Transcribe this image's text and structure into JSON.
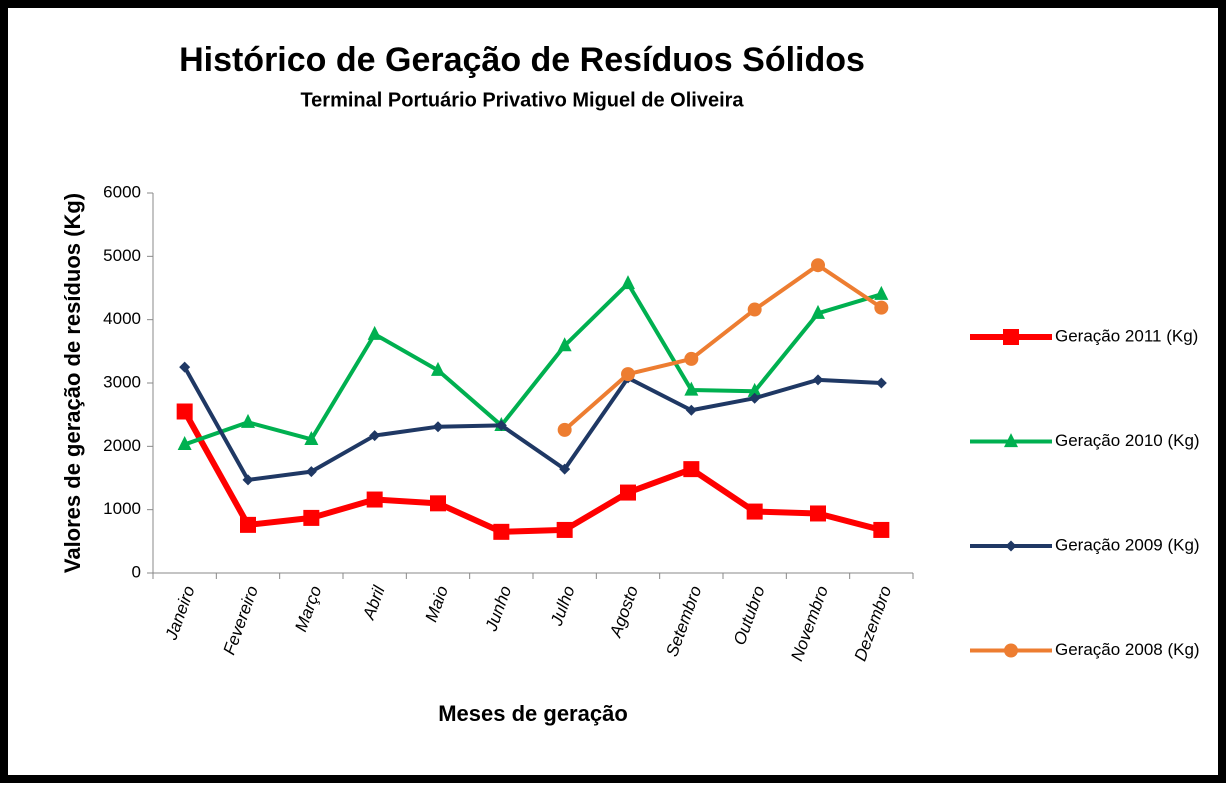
{
  "chart_data": {
    "type": "line",
    "title": "Histórico de Geração de Resíduos Sólidos",
    "subtitle": "Terminal Portuário Privativo Miguel de Oliveira",
    "x_label": "Meses de geração",
    "y_label": "Valores de geração de resíduos (Kg)",
    "categories": [
      "Janeiro",
      "Fevereiro",
      "Março",
      "Abril",
      "Maio",
      "Junho",
      "Julho",
      "Agosto",
      "Setembro",
      "Outubro",
      "Novembro",
      "Dezembro"
    ],
    "series": [
      {
        "name": "Geração 2011 (Kg)",
        "color": "#ff0000",
        "marker": "square",
        "values": [
          2550,
          760,
          870,
          1160,
          1100,
          650,
          680,
          1270,
          1640,
          970,
          940,
          680
        ]
      },
      {
        "name": "Geração 2010 (Kg)",
        "color": "#00b050",
        "marker": "triangle",
        "values": [
          2030,
          2380,
          2110,
          3770,
          3200,
          2330,
          3590,
          4570,
          2890,
          2870,
          4100,
          4400
        ]
      },
      {
        "name": "Geração 2009 (Kg)",
        "color": "#1f3864",
        "marker": "diamond",
        "values": [
          3250,
          1470,
          1600,
          2170,
          2310,
          2330,
          1640,
          3080,
          2570,
          2760,
          3050,
          3000
        ]
      },
      {
        "name": "Geração 2008 (Kg)",
        "color": "#ed7d31",
        "marker": "circle",
        "values": [
          null,
          null,
          null,
          null,
          null,
          null,
          2260,
          3140,
          3380,
          4160,
          4860,
          4190
        ]
      }
    ],
    "ylim": [
      0,
      6000
    ],
    "yticks": [
      0,
      1000,
      2000,
      3000,
      4000,
      5000,
      6000
    ],
    "legend": "right"
  }
}
